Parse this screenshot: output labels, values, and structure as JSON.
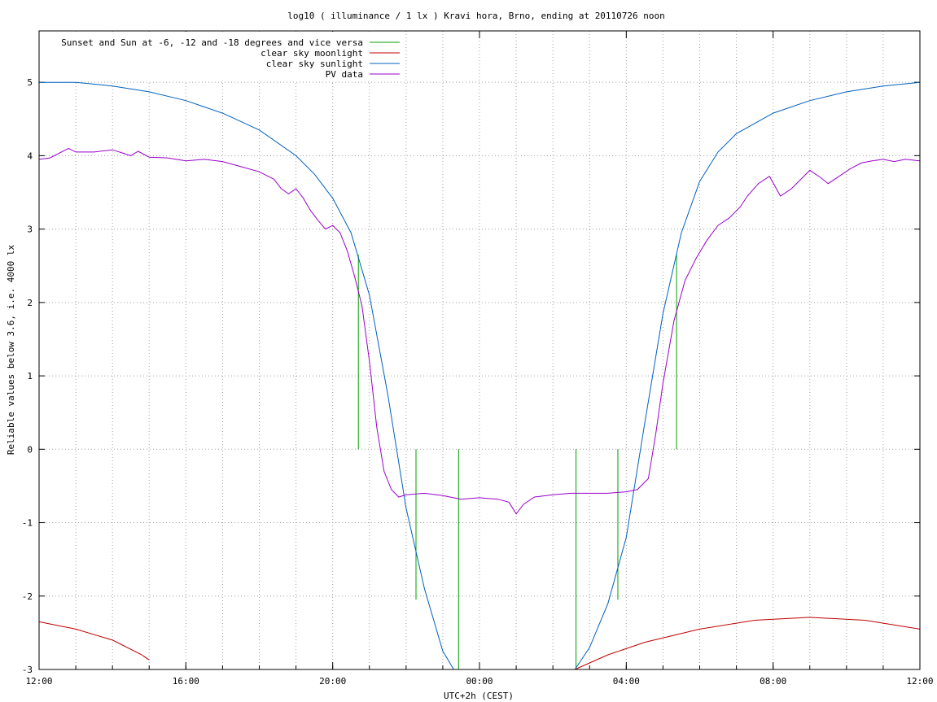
{
  "chart_data": {
    "type": "line",
    "title": "log10 ( illuminance / 1 lx ) Kravi hora, Brno, ending at 20110726 noon",
    "xlabel": "UTC+2h (CEST)",
    "ylabel": "Reliable values below 3.6, i.e. 4000 lx",
    "x_unit": "hours since 12:00 (UTC+2h)",
    "xlim": [
      0,
      24
    ],
    "ylim": [
      -3,
      5.7
    ],
    "x_ticks": [
      {
        "value": 0,
        "label": "12:00"
      },
      {
        "value": 4,
        "label": "16:00"
      },
      {
        "value": 8,
        "label": "20:00"
      },
      {
        "value": 12,
        "label": "00:00"
      },
      {
        "value": 16,
        "label": "04:00"
      },
      {
        "value": 20,
        "label": "08:00"
      },
      {
        "value": 24,
        "label": "12:00"
      }
    ],
    "y_ticks": [
      {
        "value": 5,
        "label": "5"
      },
      {
        "value": 4,
        "label": "4"
      },
      {
        "value": 3,
        "label": "3"
      },
      {
        "value": 2,
        "label": "2"
      },
      {
        "value": 1,
        "label": "1"
      },
      {
        "value": 0,
        "label": "0"
      },
      {
        "value": -1,
        "label": "-1"
      },
      {
        "value": -2,
        "label": "-2"
      },
      {
        "value": -3,
        "label": "-3"
      }
    ],
    "grid": true,
    "legend_position": "top-left",
    "series": [
      {
        "name": "Sunset and Sun at -6, -12 and -18 degrees and vice versa",
        "color": "#00a000",
        "style": "vlines",
        "lines": [
          {
            "x": 8.7,
            "y0": 0,
            "y1": 2.65
          },
          {
            "x": 10.27,
            "y0": -2.05,
            "y1": 0
          },
          {
            "x": 11.43,
            "y0": -3,
            "y1": 0
          },
          {
            "x": 14.63,
            "y0": -3,
            "y1": 0
          },
          {
            "x": 15.77,
            "y0": -2.05,
            "y1": 0
          },
          {
            "x": 17.37,
            "y0": 0,
            "y1": 2.65
          }
        ]
      },
      {
        "name": "clear sky moonlight",
        "color": "#c00000",
        "segments": [
          [
            [
              0,
              -2.35
            ],
            [
              1,
              -2.45
            ],
            [
              2,
              -2.6
            ],
            [
              2.8,
              -2.8
            ],
            [
              3.0,
              -2.87
            ],
            [
              2.85,
              -2.82
            ]
          ],
          [
            [
              14.6,
              -3.0
            ],
            [
              15.5,
              -2.8
            ],
            [
              16.5,
              -2.63
            ],
            [
              18,
              -2.45
            ],
            [
              19.5,
              -2.33
            ],
            [
              21,
              -2.29
            ],
            [
              22.5,
              -2.33
            ],
            [
              24,
              -2.45
            ]
          ]
        ]
      },
      {
        "name": "clear sky sunlight",
        "color": "#0060c0",
        "x": [
          0,
          1,
          2,
          3,
          4,
          5,
          6,
          7,
          7.5,
          8,
          8.5,
          9,
          9.5,
          10,
          10.5,
          11,
          11.3,
          11.6,
          14.6,
          15,
          15.5,
          16,
          16.5,
          17,
          17.5,
          18,
          18.5,
          19,
          20,
          21,
          22,
          23,
          24
        ],
        "values": [
          5.0,
          5.0,
          4.95,
          4.87,
          4.75,
          4.58,
          4.35,
          4.0,
          3.75,
          3.42,
          2.95,
          2.1,
          0.75,
          -0.8,
          -1.9,
          -2.75,
          -3.0,
          -3.0,
          -3.0,
          -2.7,
          -2.1,
          -1.2,
          0.35,
          1.85,
          2.95,
          3.65,
          4.05,
          4.3,
          4.58,
          4.75,
          4.87,
          4.95,
          5.0
        ]
      },
      {
        "name": "PV data",
        "color": "#9900cc",
        "x": [
          0,
          0.3,
          0.8,
          1.0,
          1.5,
          2.0,
          2.5,
          2.7,
          3.0,
          3.5,
          4.0,
          4.5,
          5.0,
          5.5,
          6.0,
          6.2,
          6.4,
          6.6,
          6.8,
          7.0,
          7.2,
          7.4,
          7.6,
          7.8,
          8.0,
          8.2,
          8.4,
          8.6,
          8.8,
          9.0,
          9.2,
          9.4,
          9.6,
          9.8,
          10.0,
          10.5,
          11.0,
          11.5,
          12.0,
          12.5,
          12.8,
          13.0,
          13.2,
          13.5,
          14.0,
          14.5,
          15.0,
          15.5,
          16.0,
          16.3,
          16.6,
          16.8,
          17.0,
          17.3,
          17.6,
          17.9,
          18.2,
          18.5,
          18.8,
          19.1,
          19.3,
          19.6,
          19.9,
          20.2,
          20.5,
          20.7,
          21.0,
          21.3,
          21.5,
          21.8,
          22.1,
          22.4,
          22.7,
          23.0,
          23.3,
          23.6,
          24.0
        ],
        "values": [
          3.95,
          3.97,
          4.1,
          4.05,
          4.05,
          4.08,
          4.0,
          4.06,
          3.98,
          3.97,
          3.93,
          3.95,
          3.92,
          3.85,
          3.78,
          3.73,
          3.68,
          3.55,
          3.48,
          3.55,
          3.42,
          3.25,
          3.12,
          3.0,
          3.05,
          2.95,
          2.7,
          2.35,
          1.95,
          1.2,
          0.3,
          -0.3,
          -0.55,
          -0.65,
          -0.62,
          -0.6,
          -0.63,
          -0.68,
          -0.66,
          -0.68,
          -0.72,
          -0.88,
          -0.75,
          -0.65,
          -0.62,
          -0.6,
          -0.6,
          -0.6,
          -0.58,
          -0.55,
          -0.4,
          0.2,
          0.9,
          1.75,
          2.3,
          2.6,
          2.85,
          3.05,
          3.15,
          3.3,
          3.45,
          3.62,
          3.72,
          3.45,
          3.55,
          3.65,
          3.8,
          3.7,
          3.62,
          3.72,
          3.82,
          3.9,
          3.93,
          3.95,
          3.92,
          3.95,
          3.93
        ]
      }
    ]
  }
}
